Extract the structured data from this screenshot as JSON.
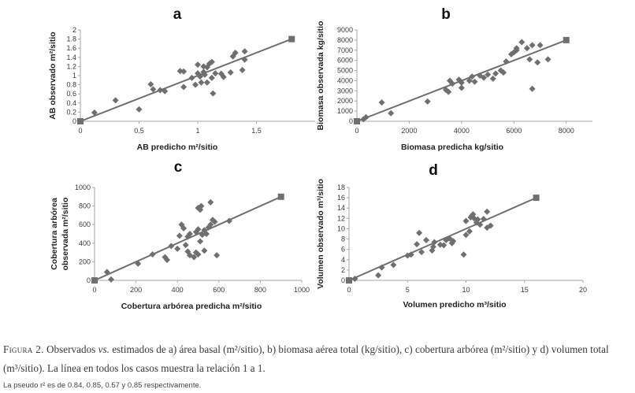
{
  "chart_data": [
    {
      "type": "scatter",
      "letter": "a",
      "xlabel": "AB predicho m²/sitio",
      "ylabel": "AB observado m²/sitio",
      "xlim": [
        0,
        2
      ],
      "ylim": [
        0,
        2
      ],
      "xticks": [
        0,
        0.5,
        1,
        1.5
      ],
      "xtick_labels": [
        "0",
        "0.5",
        "1",
        "1.5"
      ],
      "yticks": [
        0,
        0.2,
        0.4,
        0.6,
        0.8,
        1,
        1.2,
        1.4,
        1.6,
        1.8,
        2
      ],
      "ytick_labels": [
        "0",
        "0.2",
        "0.4",
        "0.6",
        "0.8",
        "1",
        "1.2",
        "1.4",
        "1.6",
        "1.8",
        "2"
      ],
      "line_endpoints": [
        [
          0,
          0
        ],
        [
          1.8,
          1.8
        ]
      ],
      "points": [
        [
          0.12,
          0.19
        ],
        [
          0.3,
          0.46
        ],
        [
          0.5,
          0.26
        ],
        [
          0.6,
          0.81
        ],
        [
          0.62,
          0.7
        ],
        [
          0.68,
          0.68
        ],
        [
          0.72,
          0.66
        ],
        [
          0.85,
          1.1
        ],
        [
          0.88,
          1.09
        ],
        [
          0.88,
          0.75
        ],
        [
          0.95,
          0.95
        ],
        [
          0.98,
          0.8
        ],
        [
          1.0,
          1.24
        ],
        [
          1.0,
          1.05
        ],
        [
          1.02,
          0.98
        ],
        [
          1.03,
          0.85
        ],
        [
          1.05,
          1.2
        ],
        [
          1.06,
          1.02
        ],
        [
          1.08,
          0.85
        ],
        [
          1.08,
          1.18
        ],
        [
          1.1,
          1.26
        ],
        [
          1.12,
          1.3
        ],
        [
          1.12,
          0.95
        ],
        [
          1.13,
          0.61
        ],
        [
          1.15,
          1.05
        ],
        [
          1.2,
          1.04
        ],
        [
          1.22,
          0.97
        ],
        [
          1.28,
          1.07
        ],
        [
          1.3,
          1.42
        ],
        [
          1.32,
          1.5
        ],
        [
          1.38,
          1.12
        ],
        [
          1.4,
          1.35
        ],
        [
          1.4,
          1.53
        ],
        [
          1.05,
          1.08
        ]
      ]
    },
    {
      "type": "scatter",
      "letter": "b",
      "xlabel": "Biomasa predicha kg/sitio",
      "ylabel": "Biomasa observada kg/sitio",
      "xlim": [
        0,
        9000
      ],
      "ylim": [
        0,
        9000
      ],
      "xticks": [
        0,
        2000,
        4000,
        6000,
        8000
      ],
      "xtick_labels": [
        "0",
        "2000",
        "4000",
        "6000",
        "8000"
      ],
      "yticks": [
        0,
        1000,
        2000,
        3000,
        4000,
        5000,
        6000,
        7000,
        8000,
        9000
      ],
      "ytick_labels": [
        "0",
        "1000",
        "2000",
        "3000",
        "4000",
        "5000",
        "6000",
        "7000",
        "8000",
        "9000"
      ],
      "line_endpoints": [
        [
          0,
          0
        ],
        [
          8000,
          8000
        ]
      ],
      "points": [
        [
          250,
          200
        ],
        [
          350,
          400
        ],
        [
          950,
          1850
        ],
        [
          1300,
          800
        ],
        [
          2700,
          1950
        ],
        [
          3400,
          3100
        ],
        [
          3500,
          2900
        ],
        [
          3550,
          4000
        ],
        [
          3650,
          3700
        ],
        [
          3900,
          4100
        ],
        [
          4000,
          3300
        ],
        [
          4000,
          3800
        ],
        [
          4300,
          4000
        ],
        [
          4500,
          3900
        ],
        [
          4700,
          4500
        ],
        [
          4850,
          4300
        ],
        [
          5000,
          4600
        ],
        [
          5200,
          4200
        ],
        [
          5300,
          4700
        ],
        [
          5500,
          5000
        ],
        [
          5600,
          4800
        ],
        [
          5700,
          5900
        ],
        [
          5900,
          6600
        ],
        [
          6000,
          6800
        ],
        [
          6100,
          7000
        ],
        [
          6100,
          7200
        ],
        [
          6300,
          7800
        ],
        [
          6500,
          7200
        ],
        [
          6600,
          6100
        ],
        [
          6700,
          3200
        ],
        [
          6700,
          7500
        ],
        [
          6900,
          5800
        ],
        [
          7000,
          7500
        ],
        [
          7300,
          6100
        ],
        [
          4400,
          4400
        ]
      ]
    },
    {
      "type": "scatter",
      "letter": "c",
      "xlabel": "Cobertura arbórea predicha m²/sitio",
      "ylabel": "Cobertura arbórea observada m²/sitio",
      "xlim": [
        0,
        1000
      ],
      "ylim": [
        0,
        1000
      ],
      "xticks": [
        0,
        200,
        400,
        600,
        800,
        1000
      ],
      "xtick_labels": [
        "0",
        "200",
        "400",
        "600",
        "800",
        "1000"
      ],
      "yticks": [
        0,
        200,
        400,
        600,
        800,
        1000
      ],
      "ytick_labels": [
        "0",
        "200",
        "400",
        "600",
        "800",
        "1000"
      ],
      "line_endpoints": [
        [
          0,
          0
        ],
        [
          900,
          900
        ]
      ],
      "points": [
        [
          60,
          90
        ],
        [
          80,
          10
        ],
        [
          210,
          180
        ],
        [
          280,
          280
        ],
        [
          340,
          250
        ],
        [
          350,
          220
        ],
        [
          370,
          370
        ],
        [
          400,
          340
        ],
        [
          410,
          480
        ],
        [
          420,
          600
        ],
        [
          430,
          560
        ],
        [
          440,
          380
        ],
        [
          450,
          310
        ],
        [
          450,
          470
        ],
        [
          460,
          500
        ],
        [
          460,
          270
        ],
        [
          480,
          250
        ],
        [
          490,
          300
        ],
        [
          490,
          520
        ],
        [
          500,
          280
        ],
        [
          500,
          550
        ],
        [
          500,
          780
        ],
        [
          510,
          760
        ],
        [
          510,
          420
        ],
        [
          515,
          800
        ],
        [
          520,
          490
        ],
        [
          530,
          320
        ],
        [
          530,
          540
        ],
        [
          540,
          500
        ],
        [
          550,
          570
        ],
        [
          560,
          600
        ],
        [
          560,
          840
        ],
        [
          570,
          650
        ],
        [
          580,
          630
        ],
        [
          590,
          270
        ],
        [
          650,
          640
        ]
      ]
    },
    {
      "type": "scatter",
      "letter": "d",
      "xlabel": "Volumen predicho m³/sitio",
      "ylabel": "Volumen observado m³/sitio",
      "xlim": [
        0,
        20
      ],
      "ylim": [
        0,
        18
      ],
      "xticks": [
        0,
        5,
        10,
        15,
        20
      ],
      "xtick_labels": [
        "0",
        "5",
        "10",
        "15",
        "20"
      ],
      "yticks": [
        0,
        2,
        4,
        6,
        8,
        10,
        12,
        14,
        16,
        18
      ],
      "ytick_labels": [
        "0",
        "2",
        "4",
        "6",
        "8",
        "10",
        "12",
        "14",
        "16",
        "18"
      ],
      "line_endpoints": [
        [
          0,
          0
        ],
        [
          16,
          16
        ]
      ],
      "points": [
        [
          0.5,
          0.3
        ],
        [
          2.5,
          1.0
        ],
        [
          2.8,
          2.5
        ],
        [
          3.8,
          3.0
        ],
        [
          5.0,
          4.8
        ],
        [
          5.3,
          5.0
        ],
        [
          5.8,
          7.0
        ],
        [
          6.0,
          9.2
        ],
        [
          6.2,
          5.5
        ],
        [
          6.6,
          7.8
        ],
        [
          7.1,
          5.8
        ],
        [
          7.2,
          6.5
        ],
        [
          7.3,
          7.4
        ],
        [
          7.8,
          6.9
        ],
        [
          8.1,
          6.8
        ],
        [
          8.3,
          7.8
        ],
        [
          8.6,
          8.1
        ],
        [
          8.8,
          7.2
        ],
        [
          8.9,
          7.6
        ],
        [
          9.8,
          5.0
        ],
        [
          10.0,
          8.8
        ],
        [
          10.0,
          11.5
        ],
        [
          10.3,
          9.5
        ],
        [
          10.4,
          12.2
        ],
        [
          10.5,
          12.5
        ],
        [
          10.7,
          12.0
        ],
        [
          10.9,
          11.2
        ],
        [
          11.0,
          11.8
        ],
        [
          11.2,
          10.8
        ],
        [
          11.5,
          11.9
        ],
        [
          11.8,
          10.2
        ],
        [
          11.8,
          13.3
        ],
        [
          12.1,
          10.6
        ],
        [
          10.6,
          12.8
        ]
      ]
    }
  ],
  "caption": {
    "label": "Figura 2.",
    "text_1": " Observados ",
    "vs": "vs.",
    "text_2": " estimados de a) área basal (m²/sitio), b) biomasa aérea total (kg/sitio), c) cobertura arbórea (m²/sitio) y d) volumen total (m³/sitio). La línea en todos los casos muestra la relación 1 a 1."
  },
  "note": "La pseudo r² es de 0.84, 0.85, 0.57 y 0.85 respectivamente.",
  "colors": {
    "marker": "#6f6f6f",
    "line": "#6f6f6f",
    "axis": "#a6a6a6",
    "text": "#3a3a3a"
  }
}
